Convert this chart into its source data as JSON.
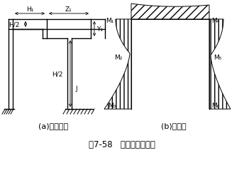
{
  "fig_width": 3.44,
  "fig_height": 2.51,
  "dpi": 100,
  "bg_color": "#ffffff",
  "line_color": "#000000",
  "caption_a": "(a)受力简图",
  "caption_b": "(b)弯矩图",
  "title": "图7-58   立柱受力分析图",
  "label_H1": "H₁",
  "label_Z1": "Z₁",
  "label_H2_left": "H/2",
  "label_H2_right": "H/2",
  "label_Y1": "Y₁",
  "label_J": "J",
  "label_M1": "M₁",
  "label_M2": "M₂",
  "label_M3": "M₃",
  "label_M4": "M₄",
  "label_M5": "M₅",
  "label_M6": "M₆"
}
